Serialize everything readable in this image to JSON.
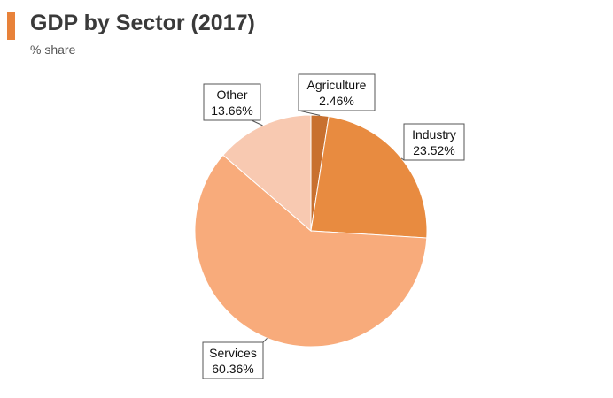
{
  "header": {
    "title": "GDP by Sector (2017)",
    "subtitle": "% share",
    "accent_color": "#e8823a"
  },
  "chart_data": {
    "type": "pie",
    "title": "GDP by Sector (2017)",
    "subtitle": "% share",
    "slices": [
      {
        "label": "Agriculture",
        "value": 2.46,
        "value_label": "2.46%",
        "color": "#c8702f"
      },
      {
        "label": "Industry",
        "value": 23.52,
        "value_label": "23.52%",
        "color": "#e88b40"
      },
      {
        "label": "Services",
        "value": 60.36,
        "value_label": "60.36%",
        "color": "#f8ab7b"
      },
      {
        "label": "Other",
        "value": 13.66,
        "value_label": "13.66%",
        "color": "#f8c9b1"
      }
    ],
    "start_angle": "12 o'clock",
    "direction": "clockwise",
    "legend": "none"
  }
}
